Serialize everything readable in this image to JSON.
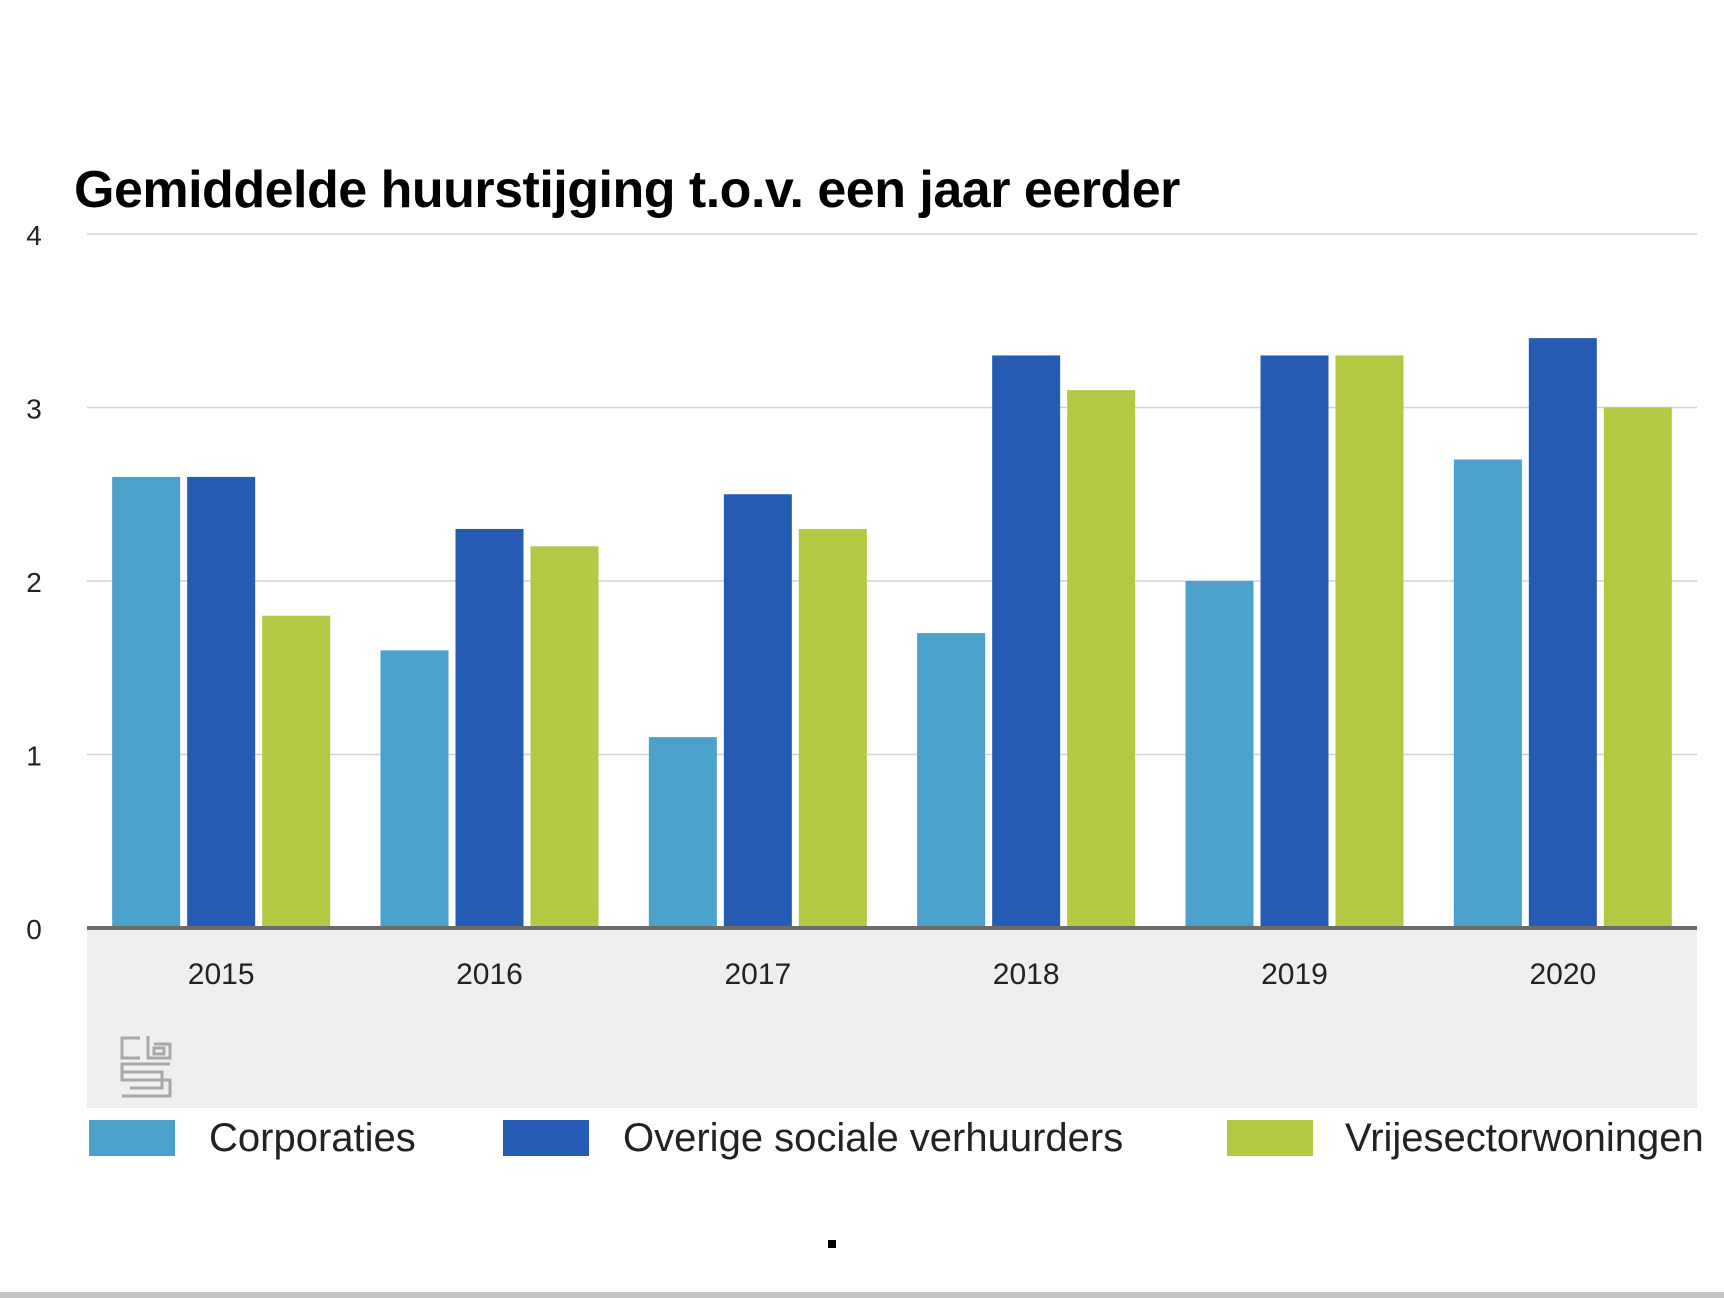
{
  "chart_data": {
    "type": "bar",
    "title": "Gemiddelde huurstijging t.o.v. een jaar eerder",
    "xlabel": "",
    "ylabel": "",
    "ylim": [
      0,
      4
    ],
    "yticks": [
      "0",
      "1",
      "2",
      "3",
      "4"
    ],
    "grid": true,
    "legend_position": "bottom",
    "categories": [
      "2015",
      "2016",
      "2017",
      "2018",
      "2019",
      "2020"
    ],
    "series": [
      {
        "name": "Corporaties",
        "color": "#4aa2cb",
        "values": [
          2.6,
          1.6,
          1.1,
          1.7,
          2.0,
          2.7
        ]
      },
      {
        "name": "Overige sociale verhuurders",
        "color": "#265bb3",
        "values": [
          2.6,
          2.3,
          2.5,
          3.3,
          3.3,
          3.4
        ]
      },
      {
        "name": "Vrijesectorwoningen",
        "color": "#b5c843",
        "values": [
          1.8,
          2.2,
          2.3,
          3.1,
          3.3,
          3.0
        ]
      }
    ]
  },
  "logo": {
    "icon": "cbs-logo-icon",
    "text": "cbs"
  },
  "footer": {
    "dot": "."
  }
}
